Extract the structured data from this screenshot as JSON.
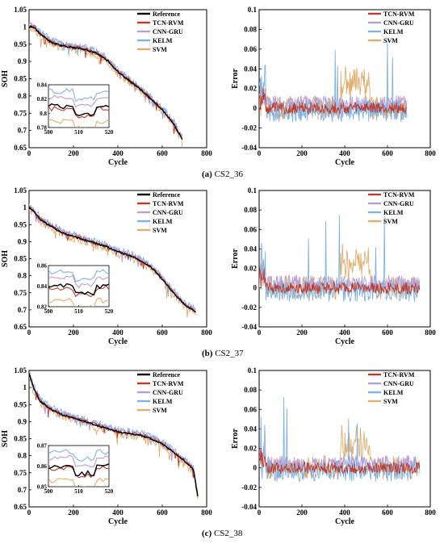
{
  "colors": {
    "reference": "#000000",
    "tcn_rvm": "#c0392b",
    "cnn_gru": "#b39ddb",
    "kelm": "#7fb2e5",
    "svm": "#e0ae6e"
  },
  "chart_data": [
    {
      "id": "a-soh",
      "type": "line",
      "xlabel": "Cycle",
      "ylabel": "SOH",
      "xlim": [
        0,
        800
      ],
      "ylim": [
        0.65,
        1.05
      ],
      "xticks": [
        "0",
        "200",
        "400",
        "600",
        "800"
      ],
      "yticks": [
        "0.65",
        "0.7",
        "0.75",
        "0.8",
        "0.85",
        "0.9",
        "0.95",
        "1",
        "1.05"
      ],
      "legend": [
        "Reference",
        "TCN-RVM",
        "CNN-GRU",
        "KELM",
        "SVM"
      ],
      "x": [
        0,
        20,
        50,
        100,
        150,
        200,
        250,
        300,
        350,
        400,
        450,
        500,
        550,
        600,
        650,
        690
      ],
      "series": [
        {
          "name": "Reference",
          "values": [
            1.0,
            1.0,
            0.98,
            0.955,
            0.945,
            0.94,
            0.935,
            0.925,
            0.905,
            0.87,
            0.845,
            0.82,
            0.79,
            0.76,
            0.72,
            0.675
          ]
        }
      ],
      "inset": {
        "xlim": [
          500,
          520
        ],
        "ylim": [
          0.78,
          0.84
        ],
        "xticks": [
          "500",
          "510",
          "520"
        ],
        "yticks": [
          "0.84",
          "0.82",
          "0.8",
          "0.78"
        ]
      }
    },
    {
      "id": "a-err",
      "type": "line",
      "xlabel": "Cycle",
      "ylabel": "Error",
      "xlim": [
        0,
        800
      ],
      "ylim": [
        -0.04,
        0.1
      ],
      "xticks": [
        "0",
        "200",
        "400",
        "600",
        "800"
      ],
      "yticks": [
        "-0.04",
        "-0.02",
        "0",
        "0.02",
        "0.04",
        "0.06",
        "0.08",
        "0.1"
      ],
      "legend": [
        "TCN-RVM",
        "CNN-GRU",
        "KELM",
        "SVM"
      ]
    },
    {
      "id": "b-soh",
      "type": "line",
      "xlabel": "Cycle",
      "ylabel": "SOH",
      "xlim": [
        0,
        800
      ],
      "ylim": [
        0.65,
        1.05
      ],
      "xticks": [
        "0",
        "200",
        "400",
        "600",
        "800"
      ],
      "yticks": [
        "0.65",
        "0.7",
        "0.75",
        "0.8",
        "0.85",
        "0.9",
        "0.95",
        "1",
        "1.05"
      ],
      "legend": [
        "Reference",
        "TCN-RVM",
        "CNN-GRU",
        "KELM",
        "SVM"
      ],
      "x": [
        0,
        20,
        50,
        100,
        150,
        200,
        250,
        300,
        350,
        400,
        450,
        500,
        550,
        600,
        650,
        700,
        750
      ],
      "series": [
        {
          "name": "Reference",
          "values": [
            1.0,
            0.99,
            0.965,
            0.945,
            0.925,
            0.915,
            0.905,
            0.895,
            0.885,
            0.87,
            0.86,
            0.845,
            0.825,
            0.79,
            0.75,
            0.715,
            0.695
          ]
        }
      ],
      "inset": {
        "xlim": [
          500,
          520
        ],
        "ylim": [
          0.82,
          0.86
        ],
        "xticks": [
          "500",
          "510",
          "520"
        ],
        "yticks": [
          "0.86",
          "0.84",
          "0.82"
        ]
      }
    },
    {
      "id": "b-err",
      "type": "line",
      "xlabel": "Cycle",
      "ylabel": "Error",
      "xlim": [
        0,
        800
      ],
      "ylim": [
        -0.04,
        0.1
      ],
      "xticks": [
        "0",
        "200",
        "400",
        "600",
        "800"
      ],
      "yticks": [
        "-0.04",
        "-0.02",
        "0",
        "0.02",
        "0.04",
        "0.06",
        "0.08",
        "0.1"
      ],
      "legend": [
        "TCN-RVM",
        "CNN-GRU",
        "KELM",
        "SVM"
      ]
    },
    {
      "id": "c-soh",
      "type": "line",
      "xlabel": "Cycle",
      "ylabel": "SOH",
      "xlim": [
        0,
        800
      ],
      "ylim": [
        0.65,
        1.05
      ],
      "xticks": [
        "0",
        "200",
        "400",
        "600",
        "800"
      ],
      "yticks": [
        "0.65",
        "0.7",
        "0.75",
        "0.8",
        "0.85",
        "0.9",
        "0.95",
        "1",
        "1.05"
      ],
      "legend": [
        "Reference",
        "TCN-RVM",
        "CNN-GRU",
        "KELM",
        "SVM"
      ],
      "x": [
        0,
        20,
        50,
        100,
        150,
        200,
        250,
        300,
        350,
        400,
        450,
        500,
        550,
        600,
        650,
        700,
        740,
        760
      ],
      "series": [
        {
          "name": "Reference",
          "values": [
            1.04,
            1.0,
            0.96,
            0.935,
            0.92,
            0.91,
            0.9,
            0.89,
            0.88,
            0.87,
            0.865,
            0.86,
            0.85,
            0.835,
            0.81,
            0.785,
            0.76,
            0.68
          ]
        }
      ],
      "inset": {
        "xlim": [
          500,
          520
        ],
        "ylim": [
          0.85,
          0.87
        ],
        "xticks": [
          "500",
          "510",
          "520"
        ],
        "yticks": [
          "0.87",
          "0.86",
          "0.85"
        ]
      }
    },
    {
      "id": "c-err",
      "type": "line",
      "xlabel": "Cycle",
      "ylabel": "Error",
      "xlim": [
        0,
        800
      ],
      "ylim": [
        -0.04,
        0.1
      ],
      "xticks": [
        "0",
        "200",
        "400",
        "600",
        "800"
      ],
      "yticks": [
        "-0.04",
        "-0.02",
        "0",
        "0.02",
        "0.04",
        "0.06",
        "0.08",
        "0.1"
      ],
      "legend": [
        "TCN-RVM",
        "CNN-GRU",
        "KELM",
        "SVM"
      ]
    }
  ],
  "captions": [
    {
      "letter": "(a)",
      "text": "CS2_36"
    },
    {
      "letter": "(b)",
      "text": "CS2_37"
    },
    {
      "letter": "(c)",
      "text": "CS2_38"
    }
  ]
}
